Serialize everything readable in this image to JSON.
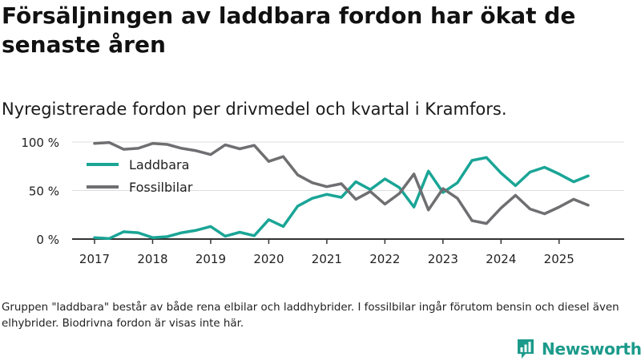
{
  "title": "Försäljningen av laddbara fordon har ökat de senaste åren",
  "subtitle": "Nyregistrerade fordon per drivmedel och kvartal i Kramfors.",
  "footnote": "Gruppen \"laddbara\" består av både rena elbilar och laddhybrider. I fossilbilar ingår förutom bensin och diesel även elhybrider. Biodrivna fordon är visas inte här.",
  "brand": "Newsworthy",
  "colors": {
    "laddbara": "#1aa596",
    "fossil": "#6f6f72",
    "grid": "#dddddd",
    "axis": "#333333",
    "brand": "#1b9a8a"
  },
  "chart_data": {
    "type": "line",
    "title": "Nyregistrerade fordon per drivmedel och kvartal i Kramfors.",
    "xlabel": "",
    "ylabel": "",
    "x_start": 2017.0,
    "x_step": 0.25,
    "xlim": [
      2016.75,
      2025.75
    ],
    "ylim": [
      0,
      100
    ],
    "y_ticks": [
      0,
      50,
      100
    ],
    "y_tick_labels": [
      "0 %",
      "50 %",
      "100 %"
    ],
    "x_ticks": [
      2017,
      2018,
      2019,
      2020,
      2021,
      2022,
      2023,
      2024,
      2025
    ],
    "x_tick_labels": [
      "2017",
      "2018",
      "2019",
      "2020",
      "2021",
      "2022",
      "2023",
      "2024",
      "2025"
    ],
    "legend_position": "top-left",
    "series": [
      {
        "name": "Laddbara",
        "color": "#1aa596",
        "values": [
          1.5,
          0.5,
          7.5,
          6.5,
          1.5,
          2.5,
          6.5,
          9,
          13,
          3,
          7,
          3.5,
          20,
          13,
          34,
          42,
          46,
          43,
          59,
          51,
          62,
          53,
          33,
          70,
          48,
          58,
          81,
          84,
          68,
          55,
          69,
          74,
          67,
          59,
          65
        ]
      },
      {
        "name": "Fossilbilar",
        "color": "#6f6f72",
        "values": [
          98.5,
          99.5,
          92.5,
          93.5,
          98.5,
          97.5,
          93.5,
          91,
          87,
          97,
          93,
          96.5,
          80,
          85,
          66,
          58,
          54,
          57,
          41,
          49,
          36,
          47,
          67,
          30,
          52,
          42,
          19,
          16,
          32,
          45,
          31,
          26,
          33,
          41,
          35
        ]
      }
    ]
  }
}
